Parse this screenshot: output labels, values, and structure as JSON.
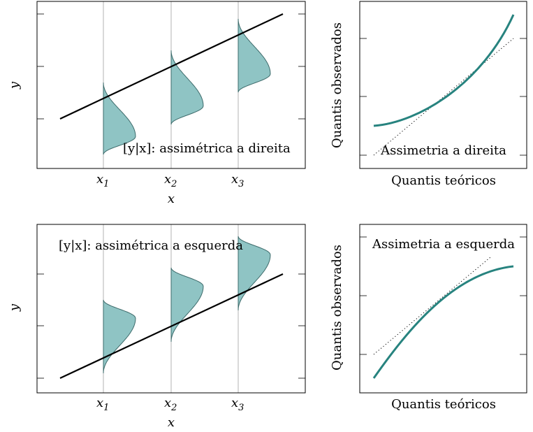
{
  "panels": {
    "top_left": {
      "annotation": "[y|x]: assimétrica a direita",
      "ylabel": "y",
      "xlabel": "x",
      "xticks": [
        {
          "base": "x",
          "sub": "1"
        },
        {
          "base": "x",
          "sub": "2"
        },
        {
          "base": "x",
          "sub": "3"
        }
      ],
      "skew": "right"
    },
    "top_right": {
      "annotation": "Assimetria a direita",
      "ylabel": "Quantis observados",
      "xlabel": "Quantis teóricos",
      "curve": "convex"
    },
    "bottom_left": {
      "annotation": "[y|x]: assimétrica a esquerda",
      "ylabel": "y",
      "xlabel": "x",
      "xticks": [
        {
          "base": "x",
          "sub": "1"
        },
        {
          "base": "x",
          "sub": "2"
        },
        {
          "base": "x",
          "sub": "3"
        }
      ],
      "skew": "left"
    },
    "bottom_right": {
      "annotation": "Assimetria a esquerda",
      "ylabel": "Quantis observados",
      "xlabel": "Quantis teóricos",
      "curve": "concave"
    }
  },
  "colors": {
    "density_fill": "#8fc4c4",
    "density_stroke": "#3d6b6b",
    "quantile_curve": "#27837f"
  }
}
